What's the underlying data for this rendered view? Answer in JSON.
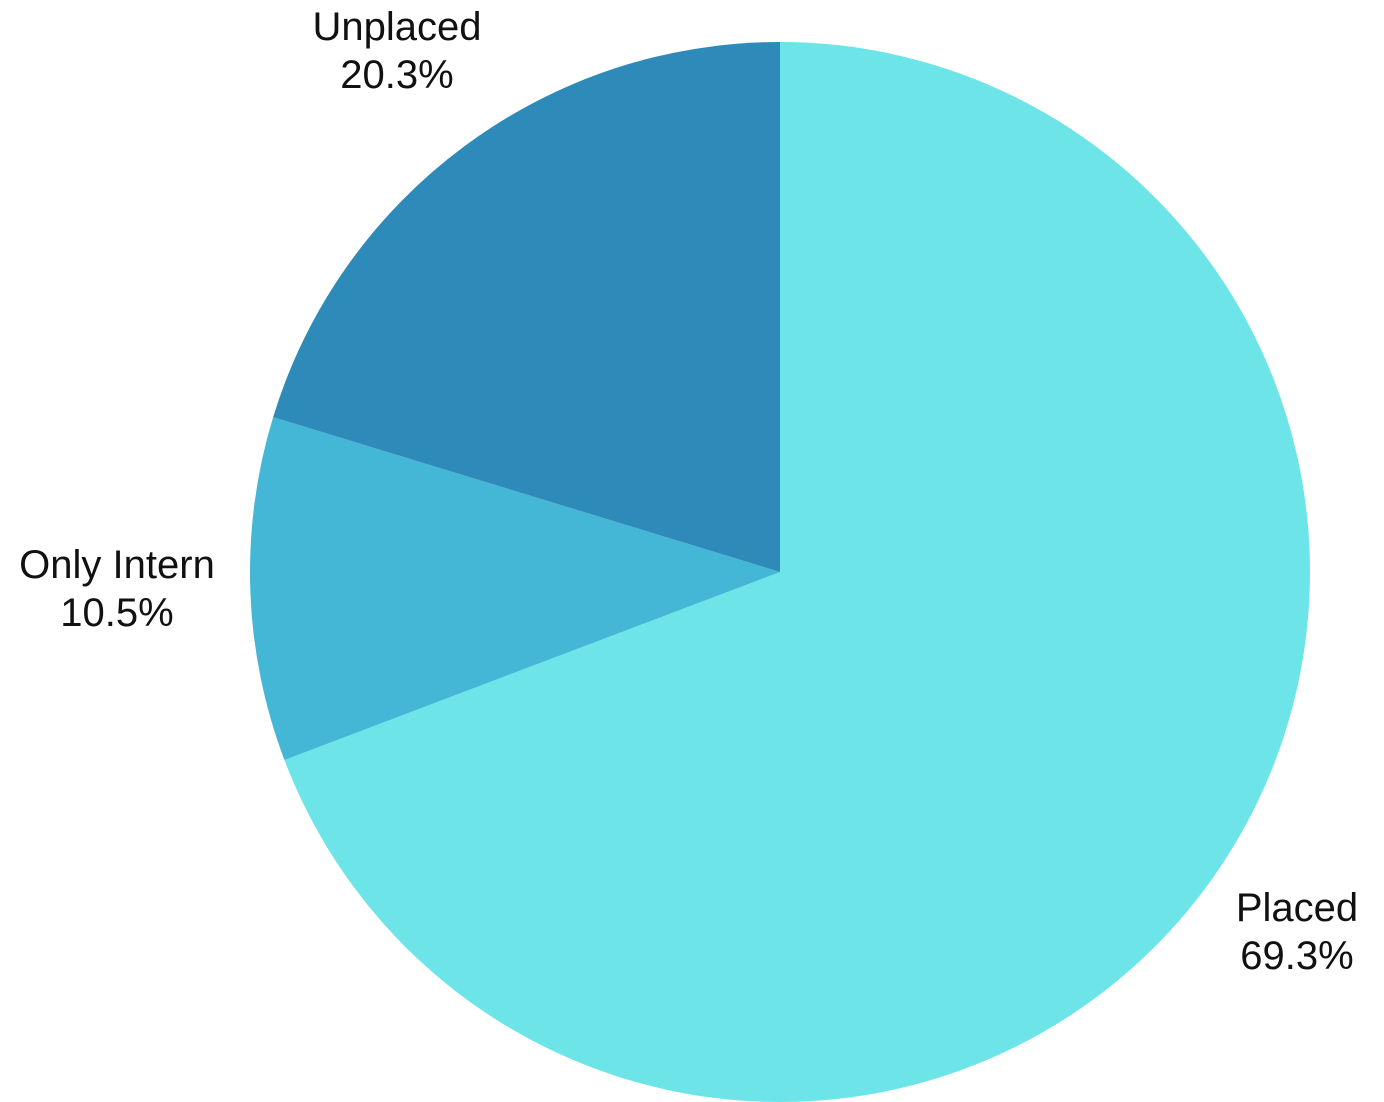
{
  "chart_data": {
    "type": "pie",
    "title": "",
    "start_angle_deg": 0,
    "direction": "clockwise",
    "slices": [
      {
        "label": "Placed",
        "value": 69.3,
        "display": "69.3%",
        "color": "#6ce4e8"
      },
      {
        "label": "Only Intern",
        "value": 10.5,
        "display": "10.5%",
        "color": "#43b7d5"
      },
      {
        "label": "Unplaced",
        "value": 20.3,
        "display": "20.3%",
        "color": "#2e8ab8"
      }
    ]
  }
}
